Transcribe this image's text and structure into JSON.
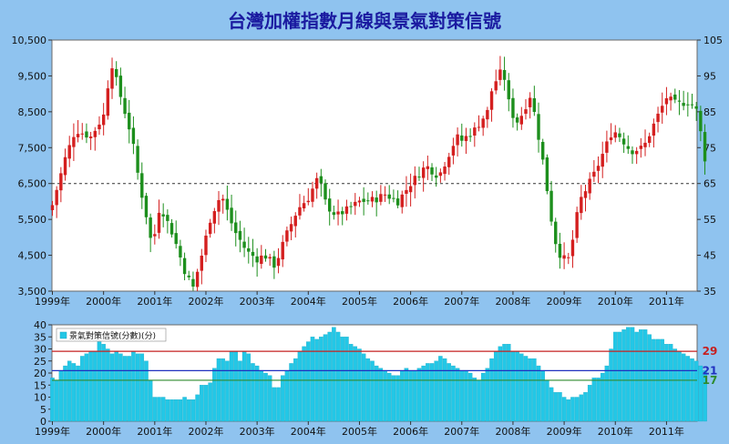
{
  "chart_data": [
    {
      "type": "candlestick",
      "title": "台灣加權指數月線與景氣對策信號",
      "ylim_left": [
        3500,
        10500
      ],
      "ylim_right": [
        35,
        105
      ],
      "yticks_left": [
        "3,500",
        "4,500",
        "5,500",
        "6,500",
        "7,500",
        "8,500",
        "9,500",
        "10,500"
      ],
      "yticks_right": [
        "35",
        "45",
        "55",
        "65",
        "75",
        "85",
        "95",
        "105"
      ],
      "xticks": [
        "1999年",
        "2000年",
        "2001年",
        "2002年",
        "2003年",
        "2004年",
        "2005年",
        "2006年",
        "2007年",
        "2008年",
        "2009年",
        "2010年",
        "2011年"
      ],
      "reference_line": 6500,
      "anchors": [
        [
          1999.0,
          5900
        ],
        [
          1999.25,
          7200
        ],
        [
          1999.45,
          8000
        ],
        [
          1999.75,
          7800
        ],
        [
          2000.0,
          8400
        ],
        [
          2000.15,
          9900
        ],
        [
          2000.3,
          9100
        ],
        [
          2000.55,
          7800
        ],
        [
          2000.7,
          6500
        ],
        [
          2000.85,
          5500
        ],
        [
          2000.95,
          4700
        ],
        [
          2001.1,
          5900
        ],
        [
          2001.35,
          5100
        ],
        [
          2001.6,
          4000
        ],
        [
          2001.75,
          3600
        ],
        [
          2001.9,
          4400
        ],
        [
          2002.1,
          5600
        ],
        [
          2002.3,
          6200
        ],
        [
          2002.55,
          5200
        ],
        [
          2002.8,
          4600
        ],
        [
          2003.0,
          4400
        ],
        [
          2003.15,
          4500
        ],
        [
          2003.35,
          4200
        ],
        [
          2003.55,
          5000
        ],
        [
          2003.8,
          5800
        ],
        [
          2004.0,
          6100
        ],
        [
          2004.2,
          6700
        ],
        [
          2004.35,
          5900
        ],
        [
          2004.55,
          5600
        ],
        [
          2004.8,
          5800
        ],
        [
          2005.0,
          6000
        ],
        [
          2005.3,
          6050
        ],
        [
          2005.5,
          6200
        ],
        [
          2005.75,
          6000
        ],
        [
          2006.0,
          6500
        ],
        [
          2006.3,
          7000
        ],
        [
          2006.55,
          6700
        ],
        [
          2006.9,
          7800
        ],
        [
          2007.0,
          7700
        ],
        [
          2007.25,
          8000
        ],
        [
          2007.5,
          8500
        ],
        [
          2007.6,
          9200
        ],
        [
          2007.8,
          9700
        ],
        [
          2007.95,
          8500
        ],
        [
          2008.1,
          8200
        ],
        [
          2008.35,
          9000
        ],
        [
          2008.6,
          7000
        ],
        [
          2008.8,
          5000
        ],
        [
          2008.95,
          4400
        ],
        [
          2009.1,
          4400
        ],
        [
          2009.3,
          6000
        ],
        [
          2009.6,
          6800
        ],
        [
          2009.95,
          8000
        ],
        [
          2010.1,
          7800
        ],
        [
          2010.3,
          7400
        ],
        [
          2010.55,
          7500
        ],
        [
          2010.8,
          8300
        ],
        [
          2011.0,
          8900
        ],
        [
          2011.2,
          8700
        ],
        [
          2011.45,
          8800
        ],
        [
          2011.6,
          8500
        ],
        [
          2011.75,
          7200
        ],
        [
          2011.9,
          7000
        ]
      ]
    },
    {
      "type": "bar",
      "legend": "景氣對策信號(分數)(分)",
      "ylim": [
        0,
        40
      ],
      "yticks": [
        "0",
        "5",
        "10",
        "15",
        "20",
        "25",
        "30",
        "35",
        "40"
      ],
      "xticks": [
        "1999年",
        "2000年",
        "2001年",
        "2002年",
        "2003年",
        "2004年",
        "2005年",
        "2006年",
        "2007年",
        "2008年",
        "2009年",
        "2010年",
        "2011年"
      ],
      "reference_lines": [
        {
          "value": 29,
          "label": "29",
          "color": "#c62020"
        },
        {
          "value": 21,
          "label": "21",
          "color": "#2030c0"
        },
        {
          "value": 17,
          "label": "17",
          "color": "#2e8b2e"
        }
      ],
      "values": [
        18,
        17,
        21,
        23,
        25,
        24,
        23,
        27,
        28,
        29,
        29,
        33,
        32,
        30,
        28,
        29,
        28,
        27,
        27,
        29,
        28,
        28,
        25,
        17,
        10,
        10,
        10,
        9,
        9,
        9,
        9,
        10,
        9,
        9,
        11,
        15,
        15,
        16,
        22,
        26,
        26,
        25,
        29,
        29,
        25,
        29,
        28,
        24,
        23,
        21,
        20,
        19,
        14,
        14,
        19,
        21,
        24,
        26,
        29,
        31,
        33,
        35,
        34,
        35,
        36,
        37,
        39,
        37,
        35,
        35,
        32,
        31,
        30,
        28,
        26,
        25,
        23,
        22,
        21,
        20,
        19,
        19,
        21,
        22,
        21,
        21,
        22,
        23,
        24,
        24,
        25,
        27,
        26,
        24,
        23,
        22,
        21,
        21,
        20,
        18,
        17,
        20,
        22,
        26,
        29,
        31,
        32,
        32,
        29,
        29,
        28,
        27,
        26,
        26,
        23,
        21,
        17,
        14,
        12,
        12,
        10,
        9,
        10,
        10,
        11,
        12,
        15,
        18,
        18,
        20,
        23,
        30,
        37,
        37,
        38,
        39,
        39,
        37,
        38,
        38,
        36,
        34,
        34,
        34,
        32,
        32,
        30,
        29,
        28,
        27,
        26,
        25,
        23,
        21
      ]
    }
  ]
}
